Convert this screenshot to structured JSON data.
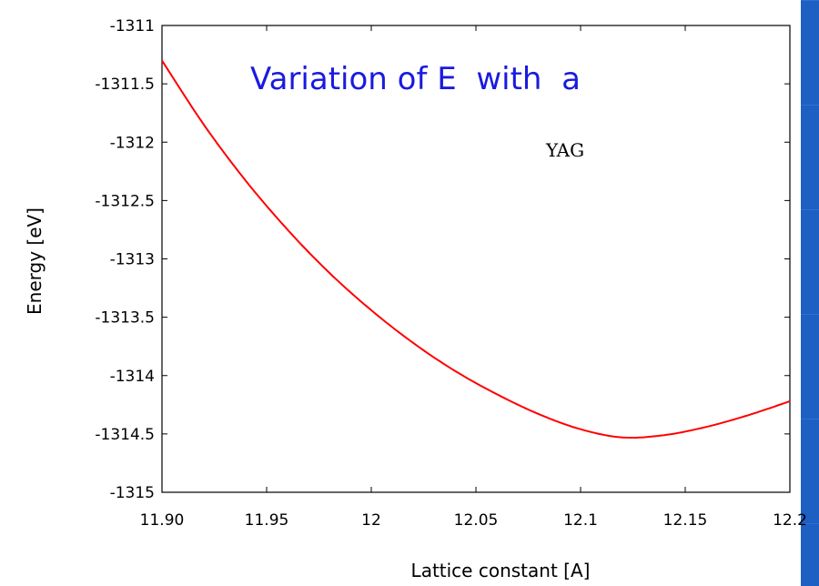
{
  "slide": {
    "title": "Variation of E  with  a",
    "background_color": "#1e5fc4",
    "title_color": "#1a1adf"
  },
  "chart_data": {
    "type": "line",
    "title": "",
    "annotation": "YAG",
    "xlabel": "Lattice constant [A]",
    "ylabel": "Energy [eV]",
    "xlim": [
      11.9,
      12.2
    ],
    "ylim": [
      -1315,
      -1311
    ],
    "x_ticks": [
      11.9,
      11.95,
      12.0,
      12.05,
      12.1,
      12.15,
      12.2
    ],
    "x_tick_labels": [
      "11.90",
      "11.95",
      "12",
      "12.05",
      "12.1",
      "12.15",
      "12.2"
    ],
    "y_ticks": [
      -1311,
      -1311.5,
      -1312,
      -1312.5,
      -1313,
      -1313.5,
      -1314,
      -1314.5,
      -1315
    ],
    "y_tick_labels": [
      "-1311",
      "-1311.5",
      "-1312",
      "-1312.5",
      "-1313",
      "-1313.5",
      "-1314",
      "-1314.5",
      "-1315"
    ],
    "grid": false,
    "series": [
      {
        "color": "#ff0000",
        "x": [
          11.9,
          11.92,
          11.94,
          11.96,
          11.98,
          12.0,
          12.02,
          12.04,
          12.06,
          12.08,
          12.1,
          12.12,
          12.14,
          12.16,
          12.18,
          12.2
        ],
        "y": [
          -1311.3,
          -1311.85,
          -1312.33,
          -1312.75,
          -1313.12,
          -1313.44,
          -1313.72,
          -1313.96,
          -1314.16,
          -1314.33,
          -1314.46,
          -1314.53,
          -1314.51,
          -1314.44,
          -1314.34,
          -1314.22
        ]
      }
    ]
  }
}
